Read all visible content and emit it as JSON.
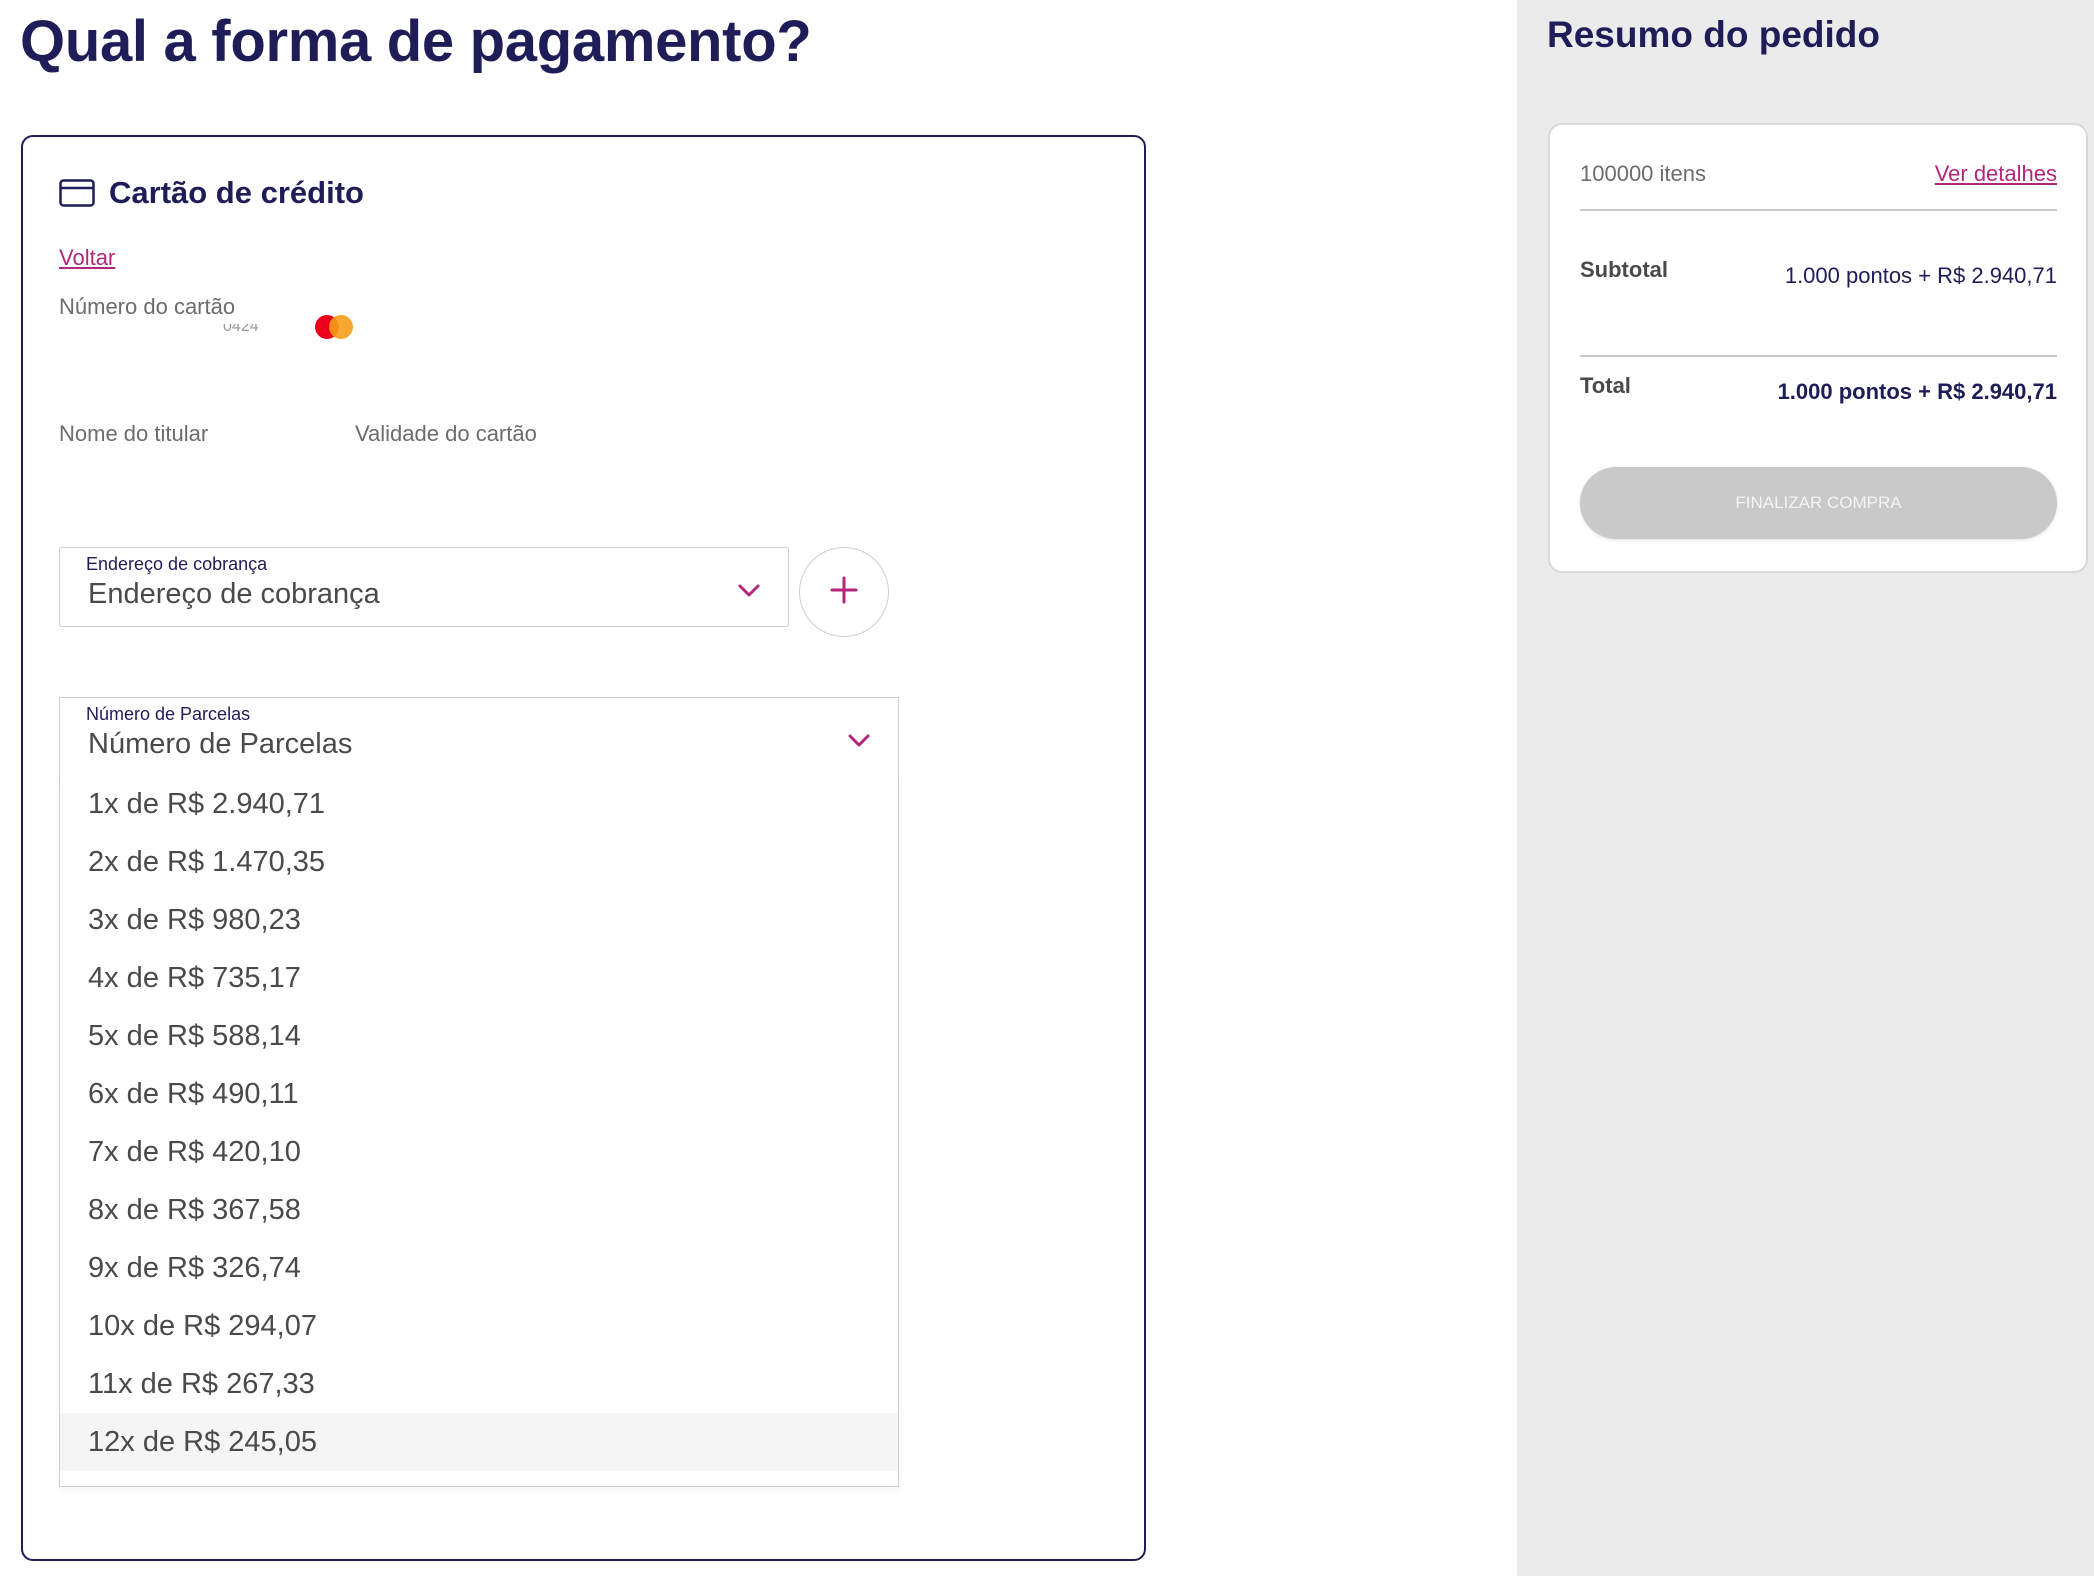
{
  "page": {
    "title": "Qual a forma de pagamento?"
  },
  "payment": {
    "method_title": "Cartão de crédito",
    "back_label": "Voltar",
    "card_number_label": "Número do cartão",
    "card_number_masked": "0424",
    "card_brand_icon": "mastercard-icon",
    "holder_label": "Nome do titular",
    "validity_label": "Validade do cartão",
    "billing": {
      "float_label": "Endereço de cobrança",
      "value": "Endereço de cobrança",
      "add_icon": "plus-icon"
    },
    "installments": {
      "float_label": "Número de Parcelas",
      "value": "Número de Parcelas",
      "options": [
        "1x de R$ 2.940,71",
        "2x de R$ 1.470,35",
        "3x de R$ 980,23",
        "4x de R$ 735,17",
        "5x de R$ 588,14",
        "6x de R$ 490,11",
        "7x de R$ 420,10",
        "8x de R$ 367,58",
        "9x de R$ 326,74",
        "10x de R$ 294,07",
        "11x de R$ 267,33",
        "12x de R$ 245,05"
      ],
      "highlighted_index": 11
    }
  },
  "summary": {
    "title": "Resumo do pedido",
    "items_count": "100000 itens",
    "details_link": "Ver detalhes",
    "subtotal_label": "Subtotal",
    "subtotal_value": "1.000 pontos + R$ 2.940,71",
    "total_label": "Total",
    "total_value": "1.000 pontos + R$ 2.940,71",
    "finish_label": "FINALIZAR COMPRA"
  },
  "colors": {
    "primary": "#1f1d57",
    "accent": "#b3267c",
    "sidebar_bg": "#ebebeb",
    "button_disabled": "#c9c9c9",
    "mastercard_red": "#eb001b",
    "mastercard_orange": "#f79e1b"
  }
}
